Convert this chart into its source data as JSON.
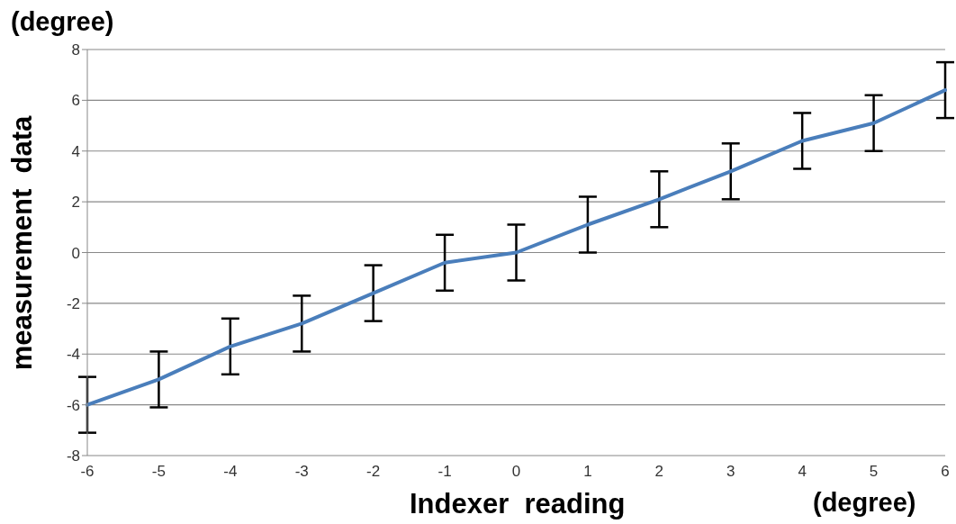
{
  "chart_data": {
    "type": "line",
    "xlabel": "Indexer  reading",
    "ylabel": "measurement  data",
    "annotations": [
      "(degree)",
      "(degree)"
    ],
    "categories": [
      "-6",
      "-5",
      "-4",
      "-3",
      "-2",
      "-1",
      "0",
      "1",
      "2",
      "3",
      "4",
      "5",
      "6"
    ],
    "series": [
      {
        "color": "#4a7ebb",
        "values": [
          -6.0,
          -5.0,
          -3.7,
          -2.8,
          -1.6,
          -0.4,
          0.0,
          1.1,
          2.1,
          3.2,
          4.4,
          5.1,
          6.4
        ],
        "errors": [
          1.1,
          1.1,
          1.1,
          1.1,
          1.1,
          1.1,
          1.1,
          1.1,
          1.1,
          1.1,
          1.1,
          1.1,
          1.1
        ]
      }
    ],
    "ylim": [
      -8,
      8
    ],
    "yticks": [
      -8,
      -6,
      -4,
      -2,
      0,
      2,
      4,
      6,
      8
    ],
    "grid": "y",
    "marker": "none",
    "line_style": "solid",
    "legend": false
  }
}
